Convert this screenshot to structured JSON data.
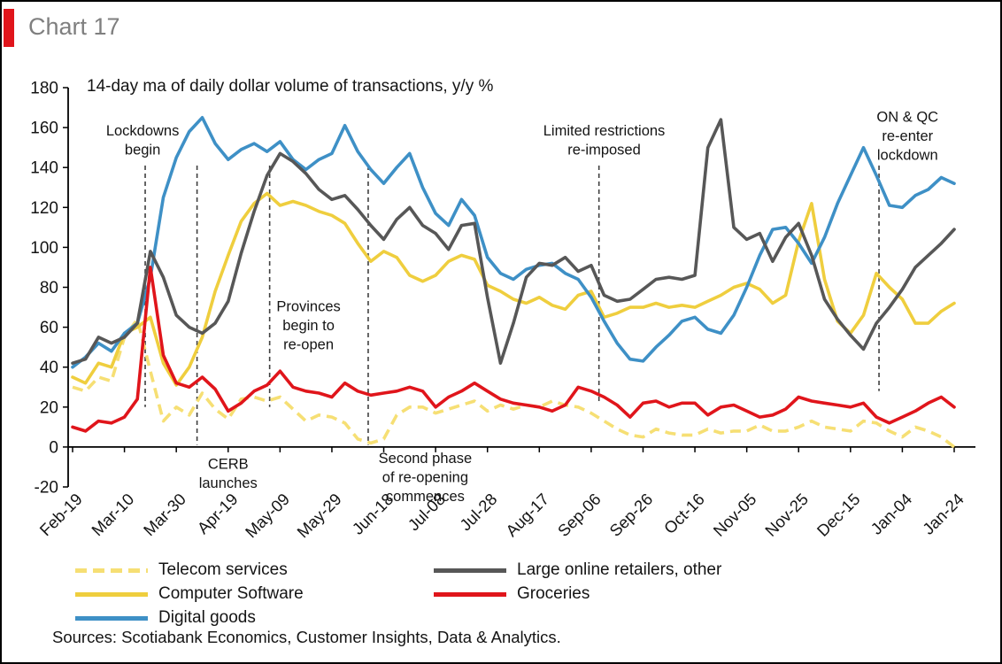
{
  "header": {
    "title": "Chart 17",
    "accent_color": "#E0151B",
    "title_color": "#7F7F7F"
  },
  "chart_data": {
    "type": "line",
    "title": "14-day ma of daily dollar volume of transactions, y/y %",
    "xlabel": "",
    "ylabel": "",
    "ylim": [
      -20,
      180
    ],
    "y_ticks": [
      180,
      160,
      140,
      120,
      100,
      80,
      60,
      40,
      20,
      0,
      -20
    ],
    "grid": false,
    "legend_position": "bottom-left",
    "axis_color": "#000000",
    "annotation_line_color": "#3F3F3F",
    "x_tick_labels": [
      "Feb-19",
      "Mar-10",
      "Mar-30",
      "Apr-19",
      "May-09",
      "May-29",
      "Jun-18",
      "Jul-08",
      "Jul-28",
      "Aug-17",
      "Sep-06",
      "Sep-26",
      "Oct-16",
      "Nov-05",
      "Nov-25",
      "Dec-15",
      "Jan-04",
      "Jan-24"
    ],
    "x_tick_interval_days": 20,
    "x_total_days": 340,
    "sample_step_days": 5,
    "series": [
      {
        "name": "Telecom services",
        "color": "#F6DF74",
        "style": "dashed",
        "values": [
          30,
          28,
          35,
          33,
          55,
          64,
          38,
          13,
          20,
          16,
          27,
          19,
          14,
          24,
          25,
          23,
          25,
          19,
          13,
          16,
          15,
          12,
          4,
          2,
          4,
          16,
          20,
          20,
          17,
          19,
          21,
          23,
          18,
          21,
          19,
          21,
          20,
          23,
          21,
          20,
          17,
          13,
          9,
          6,
          5,
          9,
          7,
          6,
          6,
          9,
          7,
          8,
          8,
          11,
          8,
          8,
          10,
          13,
          10,
          9,
          8,
          13,
          12,
          8,
          5,
          10,
          8,
          5,
          0
        ]
      },
      {
        "name": "Computer Software",
        "color": "#EFCE3E",
        "style": "solid",
        "values": [
          35,
          32,
          42,
          40,
          57,
          60,
          65,
          42,
          31,
          40,
          55,
          78,
          96,
          113,
          122,
          127,
          121,
          123,
          121,
          118,
          116,
          112,
          102,
          93,
          98,
          95,
          86,
          83,
          86,
          93,
          96,
          94,
          81,
          78,
          74,
          72,
          75,
          71,
          69,
          76,
          78,
          65,
          67,
          70,
          70,
          72,
          70,
          71,
          70,
          73,
          76,
          80,
          82,
          79,
          72,
          76,
          103,
          122,
          84,
          63,
          57,
          66,
          87,
          80,
          74,
          62,
          62,
          68,
          72
        ]
      },
      {
        "name": "Digital goods",
        "color": "#3E90C6",
        "style": "solid",
        "values": [
          40,
          45,
          52,
          48,
          57,
          62,
          85,
          125,
          145,
          158,
          165,
          152,
          144,
          149,
          152,
          148,
          153,
          144,
          139,
          144,
          147,
          161,
          148,
          139,
          132,
          140,
          147,
          130,
          117,
          111,
          124,
          116,
          95,
          87,
          84,
          89,
          91,
          92,
          87,
          84,
          75,
          63,
          52,
          44,
          43,
          50,
          56,
          63,
          65,
          59,
          57,
          66,
          80,
          96,
          109,
          110,
          102,
          92,
          105,
          122,
          136,
          150,
          136,
          121,
          120,
          126,
          129,
          135,
          132
        ]
      },
      {
        "name": "Large online retailers, other",
        "color": "#575757",
        "style": "solid",
        "values": [
          42,
          44,
          55,
          52,
          55,
          62,
          98,
          85,
          66,
          60,
          57,
          62,
          73,
          97,
          118,
          136,
          147,
          143,
          137,
          129,
          124,
          126,
          119,
          111,
          104,
          114,
          120,
          111,
          107,
          99,
          111,
          112,
          75,
          42,
          62,
          85,
          92,
          91,
          95,
          88,
          91,
          76,
          73,
          74,
          79,
          84,
          85,
          84,
          86,
          150,
          164,
          110,
          104,
          107,
          93,
          105,
          112,
          96,
          74,
          64,
          56,
          49,
          62,
          70,
          79,
          90,
          96,
          102,
          109
        ]
      },
      {
        "name": "Groceries",
        "color": "#E0151B",
        "style": "solid",
        "values": [
          10,
          8,
          13,
          12,
          15,
          24,
          90,
          46,
          32,
          30,
          35,
          29,
          18,
          22,
          28,
          31,
          38,
          30,
          28,
          27,
          25,
          32,
          28,
          26,
          27,
          28,
          30,
          28,
          20,
          25,
          28,
          32,
          28,
          24,
          22,
          21,
          20,
          18,
          21,
          30,
          28,
          25,
          21,
          15,
          22,
          23,
          20,
          22,
          22,
          16,
          20,
          21,
          18,
          15,
          16,
          19,
          25,
          23,
          22,
          21,
          20,
          22,
          15,
          12,
          15,
          18,
          22,
          25,
          20
        ]
      }
    ],
    "annotations": [
      {
        "text": "Lockdowns\nbegin",
        "line_day": 28,
        "line_top": 141,
        "line_bottom": 20,
        "label_day": 27,
        "label_value": 156
      },
      {
        "text": "CERB\nlaunches",
        "line_day": 48,
        "line_top": 141,
        "line_bottom": 1,
        "label_day": 60,
        "label_value": -11
      },
      {
        "text": "Provinces\nbegin to\nre-open",
        "line_day": 76,
        "line_top": 141,
        "line_bottom": 20,
        "label_day": 91,
        "label_value": 68
      },
      {
        "text": "Second phase\nof re-opening\ncommences",
        "line_day": 114,
        "line_top": 141,
        "line_bottom": 1,
        "label_day": 136,
        "label_value": -8
      },
      {
        "text": "Limited restrictions\nre-imposed",
        "line_day": 203,
        "line_top": 141,
        "line_bottom": 22,
        "label_day": 205,
        "label_value": 156
      },
      {
        "text": "ON & QC\nre-enter\nlockdown",
        "line_day": 311,
        "line_top": 141,
        "line_bottom": 28,
        "label_day": 322,
        "label_value": 163
      }
    ]
  },
  "footer": {
    "sources": "Sources: Scotiabank Economics, Customer Insights, Data & Analytics."
  }
}
